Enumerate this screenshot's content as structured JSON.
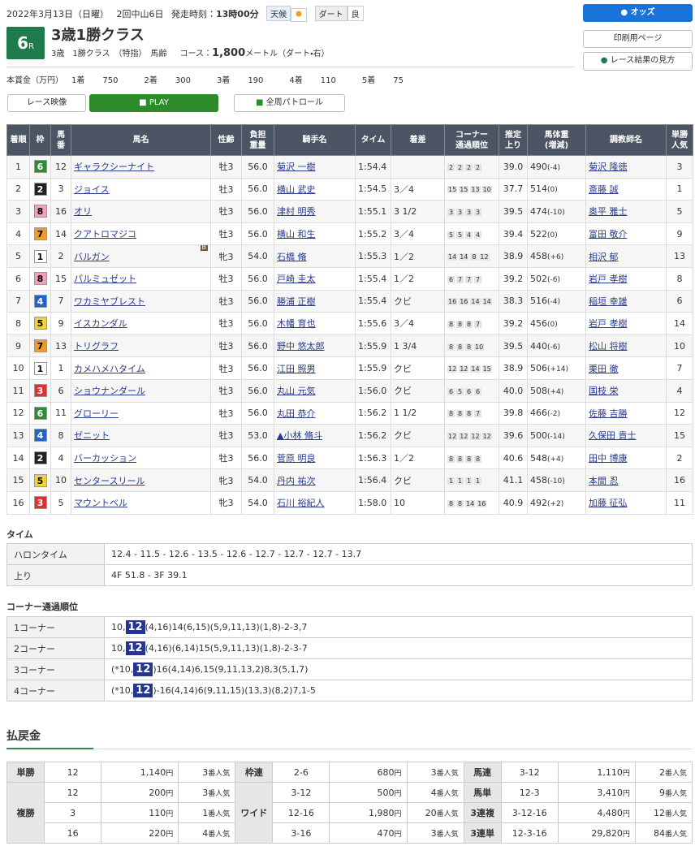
{
  "header": {
    "date": "2022年3月13日（日曜）",
    "meet": "2回中山6日",
    "start_label": "発走時刻：",
    "start_time": "13時00分",
    "weather_label": "天候",
    "track_label": "ダート",
    "track_condition": "良",
    "race_number": "6",
    "race_suffix": "R",
    "race_name": "3歳1勝クラス",
    "race_class": "3歳　1勝クラス　（特指）　馬齢",
    "course_label": "コース：",
    "distance": "1,800",
    "course_detail": "メートル（ダート・右）"
  },
  "buttons": {
    "odds": "オッズ",
    "print": "印刷用ページ",
    "guide": "レース結果の見方",
    "video": "レース映像",
    "play": "PLAY",
    "patrol": "全周パトロール"
  },
  "prize": {
    "label": "本賞金（万円）",
    "items": [
      {
        "place": "1着",
        "amount": 750
      },
      {
        "place": "2着",
        "amount": 300
      },
      {
        "place": "3着",
        "amount": 190
      },
      {
        "place": "4着",
        "amount": 110
      },
      {
        "place": "5着",
        "amount": 75
      }
    ]
  },
  "results": {
    "headers": [
      "着順",
      "枠",
      "馬\n番",
      "馬名",
      "性齢",
      "負担\n重量",
      "騎手名",
      "タイム",
      "着差",
      "コーナー\n通過順位",
      "推定\n上り",
      "馬体重\n(増減)",
      "調教師名",
      "単勝\n人気"
    ],
    "rows": [
      {
        "rank": 1,
        "frame": 6,
        "number": 12,
        "name": "ギャラクシーナイト",
        "sex_age": "牡3",
        "weight": "56.0",
        "jockey": "菊沢 一樹",
        "time": "1:54.4",
        "corners": [
          2,
          2,
          2,
          2
        ],
        "last3f": "39.0",
        "body_weight": "490",
        "weight_change": "(-4)",
        "trainer": "菊沢 隆徳",
        "popularity": 3
      },
      {
        "rank": 2,
        "frame": 2,
        "number": 3,
        "name": "ジョイス",
        "sex_age": "牡3",
        "weight": "56.0",
        "jockey": "横山 武史",
        "time": "1:54.5",
        "margin": "3／4",
        "corners": [
          15,
          15,
          13,
          10
        ],
        "last3f": "37.7",
        "body_weight": "514",
        "weight_change": "(0)",
        "trainer": "斎藤 誠",
        "popularity": 1
      },
      {
        "rank": 3,
        "frame": 8,
        "number": 16,
        "name": "オリ",
        "sex_age": "牡3",
        "weight": "56.0",
        "jockey": "津村 明秀",
        "time": "1:55.1",
        "margin": "3 1/2",
        "corners": [
          3,
          3,
          3,
          3
        ],
        "last3f": "39.5",
        "body_weight": "474",
        "weight_change": "(-10)",
        "trainer": "奥平 雅士",
        "popularity": 5
      },
      {
        "rank": 4,
        "frame": 7,
        "number": 14,
        "name": "クアトロマジコ",
        "sex_age": "牡3",
        "weight": "56.0",
        "jockey": "横山 和生",
        "time": "1:55.2",
        "margin": "3／4",
        "corners": [
          5,
          5,
          4,
          4
        ],
        "last3f": "39.4",
        "body_weight": "522",
        "weight_change": "(0)",
        "trainer": "富田 敬介",
        "popularity": 9
      },
      {
        "rank": 5,
        "frame": 1,
        "number": 2,
        "name": "バルガン",
        "blinker": "B",
        "sex_age": "牝3",
        "weight": "54.0",
        "jockey": "石橋 脩",
        "time": "1:55.3",
        "margin": "1／2",
        "corners": [
          14,
          14,
          8,
          12
        ],
        "last3f": "38.9",
        "body_weight": "458",
        "weight_change": "(+6)",
        "trainer": "相沢 郁",
        "popularity": 13
      },
      {
        "rank": 6,
        "frame": 8,
        "number": 15,
        "name": "パルミュゼット",
        "sex_age": "牡3",
        "weight": "56.0",
        "jockey": "戸崎 圭太",
        "time": "1:55.4",
        "margin": "1／2",
        "corners": [
          6,
          7,
          7,
          7
        ],
        "last3f": "39.2",
        "body_weight": "502",
        "weight_change": "(-6)",
        "trainer": "岩戸 孝樹",
        "popularity": 8
      },
      {
        "rank": 7,
        "frame": 4,
        "number": 7,
        "name": "ワカミヤブレスト",
        "sex_age": "牡3",
        "weight": "56.0",
        "jockey": "勝浦 正樹",
        "time": "1:55.4",
        "margin": "クビ",
        "corners": [
          16,
          16,
          14,
          14
        ],
        "last3f": "38.3",
        "body_weight": "516",
        "weight_change": "(-4)",
        "trainer": "稲垣 幸雄",
        "popularity": 6
      },
      {
        "rank": 8,
        "frame": 5,
        "number": 9,
        "name": "イスカンダル",
        "sex_age": "牡3",
        "weight": "56.0",
        "jockey": "木幡 育也",
        "time": "1:55.6",
        "margin": "3／4",
        "corners": [
          8,
          8,
          8,
          7
        ],
        "last3f": "39.2",
        "body_weight": "456",
        "weight_change": "(0)",
        "trainer": "岩戸 孝樹",
        "popularity": 14
      },
      {
        "rank": 9,
        "frame": 7,
        "number": 13,
        "name": "トリグラフ",
        "sex_age": "牡3",
        "weight": "56.0",
        "jockey": "野中 悠太郎",
        "time": "1:55.9",
        "margin": "1 3/4",
        "corners": [
          8,
          8,
          8,
          10
        ],
        "last3f": "39.5",
        "body_weight": "440",
        "weight_change": "(-6)",
        "trainer": "松山 将樹",
        "popularity": 10
      },
      {
        "rank": 10,
        "frame": 1,
        "number": 1,
        "name": "カメハメハタイム",
        "sex_age": "牡3",
        "weight": "56.0",
        "jockey": "江田 照男",
        "time": "1:55.9",
        "margin": "クビ",
        "corners": [
          12,
          12,
          14,
          15
        ],
        "last3f": "38.9",
        "body_weight": "506",
        "weight_change": "(+14)",
        "trainer": "栗田 徹",
        "popularity": 7
      },
      {
        "rank": 11,
        "frame": 3,
        "number": 6,
        "name": "ショウナンダール",
        "sex_age": "牡3",
        "weight": "56.0",
        "jockey": "丸山 元気",
        "time": "1:56.0",
        "margin": "クビ",
        "corners": [
          6,
          5,
          6,
          6
        ],
        "last3f": "40.0",
        "body_weight": "508",
        "weight_change": "(+4)",
        "trainer": "国枝 栄",
        "popularity": 4
      },
      {
        "rank": 12,
        "frame": 6,
        "number": 11,
        "name": "グローリー",
        "sex_age": "牡3",
        "weight": "56.0",
        "jockey": "丸田 恭介",
        "time": "1:56.2",
        "margin": "1 1/2",
        "corners": [
          8,
          8,
          8,
          7
        ],
        "last3f": "39.8",
        "body_weight": "466",
        "weight_change": "(-2)",
        "trainer": "佐藤 吉勝",
        "popularity": 12
      },
      {
        "rank": 13,
        "frame": 4,
        "number": 8,
        "name": "ゼニット",
        "sex_age": "牡3",
        "weight": "53.0",
        "jockey": "▲小林 脩斗",
        "time": "1:56.2",
        "margin": "クビ",
        "corners": [
          12,
          12,
          12,
          12
        ],
        "last3f": "39.6",
        "body_weight": "500",
        "weight_change": "(-14)",
        "trainer": "久保田 貴士",
        "popularity": 15
      },
      {
        "rank": 14,
        "frame": 2,
        "number": 4,
        "name": "バーカッション",
        "sex_age": "牡3",
        "weight": "56.0",
        "jockey": "菅原 明良",
        "time": "1:56.3",
        "margin": "1／2",
        "corners": [
          8,
          8,
          8,
          8
        ],
        "last3f": "40.6",
        "body_weight": "548",
        "weight_change": "(+4)",
        "trainer": "田中 博康",
        "popularity": 2
      },
      {
        "rank": 15,
        "frame": 5,
        "number": 10,
        "name": "センタースリール",
        "sex_age": "牝3",
        "weight": "54.0",
        "jockey": "丹内 祐次",
        "time": "1:56.4",
        "margin": "クビ",
        "corners": [
          1,
          1,
          1,
          1
        ],
        "last3f": "41.1",
        "body_weight": "458",
        "weight_change": "(-10)",
        "trainer": "本間 忍",
        "popularity": 16
      },
      {
        "rank": 16,
        "frame": 3,
        "number": 5,
        "name": "マウントベル",
        "sex_age": "牝3",
        "weight": "54.0",
        "jockey": "石川 裕紀人",
        "time": "1:58.0",
        "margin": "10",
        "corners": [
          8,
          8,
          14,
          16
        ],
        "last3f": "40.9",
        "body_weight": "492",
        "weight_change": "(+2)",
        "trainer": "加藤 征弘",
        "popularity": 11
      }
    ]
  },
  "time_section": {
    "title": "タイム",
    "rows": [
      {
        "label": "ハロンタイム",
        "value": "12.4 - 11.5 - 12.6 - 13.5 - 12.6 - 12.7 - 12.7 - 12.7 - 13.7"
      },
      {
        "label": "上り",
        "value": "4F 51.8 - 3F 39.1"
      }
    ]
  },
  "corner_section": {
    "title": "コーナー通過順位",
    "rows": [
      {
        "label": "1コーナー",
        "before": "10,",
        "leader": "12",
        "after": "(4,16)14(6,15)(5,9,11,13)(1,8)-2-3,7"
      },
      {
        "label": "2コーナー",
        "before": "10,",
        "leader": "12",
        "after": "(4,16)(6,14)15(5,9,11,13)(1,8)-2-3-7"
      },
      {
        "label": "3コーナー",
        "before": "(*10,",
        "leader": "12",
        "after": ")16(4,14)6,15(9,11,13,2)8,3(5,1,7)"
      },
      {
        "label": "4コーナー",
        "before": "(*10,",
        "leader": "12",
        "after": ")-16(4,14)6(9,11,15)(13,3)(8,2)7,1-5"
      }
    ]
  },
  "payouts": {
    "title": "払戻金",
    "yen": "円",
    "pop_suffix": "番人気",
    "columns": [
      [
        {
          "label": "単勝",
          "entries": [
            {
              "combo": "12",
              "amount": "1,140",
              "pop": 3
            }
          ]
        },
        {
          "label": "複勝",
          "entries": [
            {
              "combo": "12",
              "amount": "200",
              "pop": 3
            },
            {
              "combo": "3",
              "amount": "110",
              "pop": 1
            },
            {
              "combo": "16",
              "amount": "220",
              "pop": 4
            }
          ]
        }
      ],
      [
        {
          "label": "枠連",
          "entries": [
            {
              "combo": "2-6",
              "amount": "680",
              "pop": 3
            }
          ]
        },
        {
          "label": "ワイド",
          "entries": [
            {
              "combo": "3-12",
              "amount": "500",
              "pop": 4
            },
            {
              "combo": "12-16",
              "amount": "1,980",
              "pop": 20
            },
            {
              "combo": "3-16",
              "amount": "470",
              "pop": 3
            }
          ]
        }
      ],
      [
        {
          "label": "馬連",
          "entries": [
            {
              "combo": "3-12",
              "amount": "1,110",
              "pop": 2
            }
          ]
        },
        {
          "label": "馬単",
          "entries": [
            {
              "combo": "12-3",
              "amount": "3,410",
              "pop": 9
            }
          ]
        },
        {
          "label": "3連複",
          "entries": [
            {
              "combo": "3-12-16",
              "amount": "4,480",
              "pop": 12
            }
          ]
        },
        {
          "label": "3連単",
          "entries": [
            {
              "combo": "12-3-16",
              "amount": "29,820",
              "pop": 84
            }
          ]
        }
      ]
    ]
  }
}
